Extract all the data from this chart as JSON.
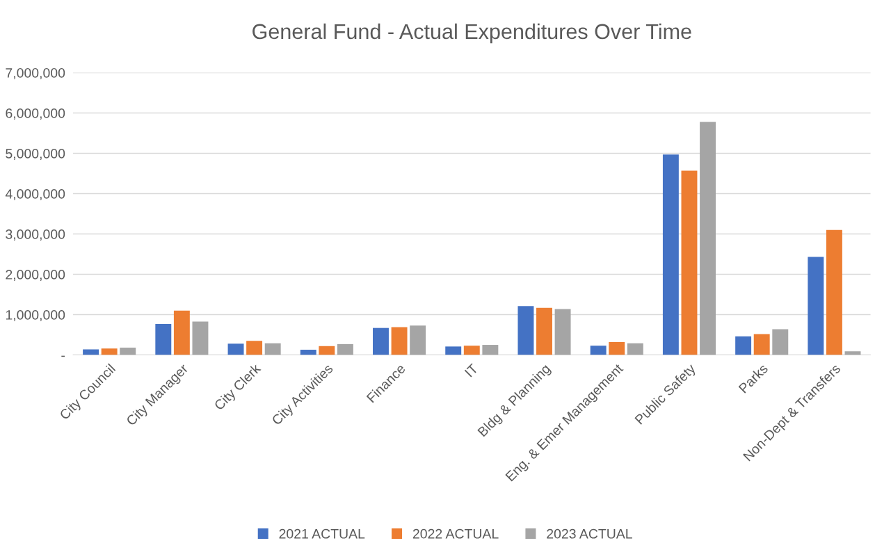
{
  "chart_data": {
    "type": "bar",
    "title": "General Fund - Actual Expenditures Over Time",
    "categories": [
      "City Council",
      "City Manager",
      "City Clerk",
      "City Activities",
      "Finance",
      "IT",
      "Bldg & Planning",
      "Eng. & Emer Management",
      "Public Safety",
      "Parks",
      "Non-Dept & Transfers"
    ],
    "series": [
      {
        "name": "2021 ACTUAL",
        "color": "#4472c4",
        "values": [
          140000,
          770000,
          280000,
          130000,
          670000,
          210000,
          1210000,
          230000,
          4970000,
          460000,
          2430000
        ]
      },
      {
        "name": "2022 ACTUAL",
        "color": "#ed7d31",
        "values": [
          160000,
          1100000,
          350000,
          220000,
          690000,
          230000,
          1170000,
          320000,
          4570000,
          520000,
          3100000
        ]
      },
      {
        "name": "2023 ACTUAL",
        "color": "#a5a5a5",
        "values": [
          180000,
          830000,
          290000,
          270000,
          730000,
          250000,
          1140000,
          290000,
          5780000,
          640000,
          90000
        ]
      }
    ],
    "ylim": [
      0,
      7000000
    ],
    "yticks": [
      {
        "value": 0,
        "label": "-"
      },
      {
        "value": 1000000,
        "label": "1,000,000"
      },
      {
        "value": 2000000,
        "label": "2,000,000"
      },
      {
        "value": 3000000,
        "label": "3,000,000"
      },
      {
        "value": 4000000,
        "label": "4,000,000"
      },
      {
        "value": 5000000,
        "label": "5,000,000"
      },
      {
        "value": 6000000,
        "label": "6,000,000"
      },
      {
        "value": 7000000,
        "label": "7,000,000"
      }
    ],
    "grid": "y",
    "legend": "bottom"
  }
}
